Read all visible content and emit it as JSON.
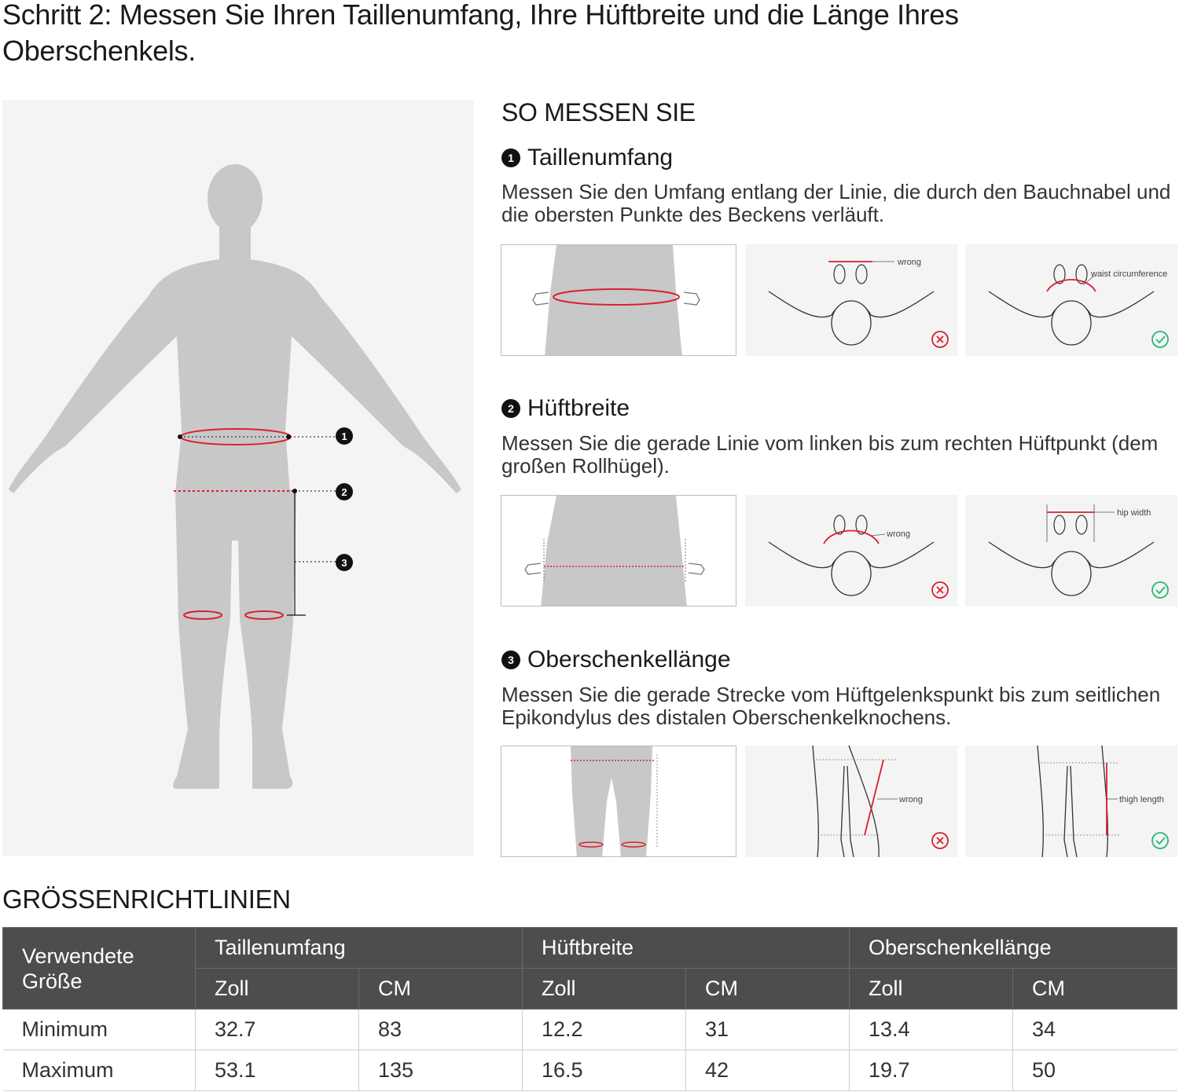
{
  "page": {
    "title": "Schritt 2: Messen Sie Ihren Taillenumfang, Ihre Hüftbreite und die Länge Ihres Oberschenkels."
  },
  "figure": {
    "markers": [
      "1",
      "2",
      "3"
    ]
  },
  "how_to": {
    "title": "SO MESSEN SIE",
    "steps": [
      {
        "number": "1",
        "heading": "Taillenumfang",
        "description": "Messen Sie den Umfang entlang der Linie, die durch den Bauchnabel und die obersten Punkte des Beckens verläuft.",
        "wrong_label": "wrong",
        "right_label": "waist circumference"
      },
      {
        "number": "2",
        "heading": "Hüftbreite",
        "description": "Messen Sie die gerade Linie vom linken bis zum rechten Hüftpunkt (dem großen Rollhügel).",
        "wrong_label": "wrong",
        "right_label": "hip width"
      },
      {
        "number": "3",
        "heading": "Oberschenkellänge",
        "description": "Messen Sie die gerade Strecke vom Hüftgelenkspunkt bis zum seitlichen Epikondylus des distalen Oberschenkelknochens.",
        "wrong_label": "wrong",
        "right_label": "thigh length"
      }
    ]
  },
  "size_guide": {
    "title": "GRÖSSENRICHTLINIEN",
    "corner_header": "Verwendete Größe",
    "groups": [
      "Taillenumfang",
      "Hüftbreite",
      "Oberschenkellänge"
    ],
    "subheaders": [
      "Zoll",
      "CM",
      "Zoll",
      "CM",
      "Zoll",
      "CM"
    ],
    "rows": [
      {
        "label": "Minimum",
        "values": [
          "32.7",
          "83",
          "12.2",
          "31",
          "13.4",
          "34"
        ]
      },
      {
        "label": "Maximum",
        "values": [
          "53.1",
          "135",
          "16.5",
          "42",
          "19.7",
          "50"
        ]
      }
    ]
  },
  "colors": {
    "measure_line": "#d9202e",
    "silhouette": "#c8c8c8",
    "header_bg": "#4d4d4d",
    "wrong_icon": "#d9202e",
    "right_icon": "#2bb673"
  }
}
